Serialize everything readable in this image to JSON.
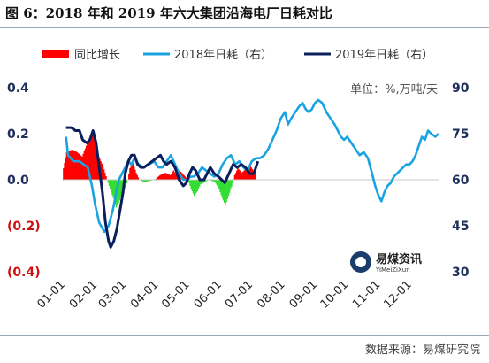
{
  "title": "图 6：2018 年和 2019 年六大集团沿海电厂日耗对比",
  "source": "数据来源：易煤研究院",
  "unit_label": "单位：%,万吨/天",
  "logo": {
    "name": "易煤资讯",
    "sub": "YiMeiZiXun"
  },
  "colors": {
    "growth_pos": "#ff0000",
    "growth_neg": "#33dd33",
    "s2018": "#1aa3e0",
    "s2019": "#0b1f5c",
    "left_axis": "#1f2f5c",
    "left_axis_neg": "#cc1111"
  },
  "chart_data": {
    "type": "line",
    "xlabel": "",
    "ylabel": "",
    "x_ticks": [
      "01-01",
      "02-01",
      "03-01",
      "04-01",
      "05-01",
      "06-01",
      "07-01",
      "08-01",
      "09-01",
      "10-01",
      "11-01",
      "12-01"
    ],
    "x_range": [
      1,
      365
    ],
    "left_axis": {
      "ticks": [
        "0.4",
        "0.2",
        "0.0",
        "(0.2)",
        "(0.4)"
      ],
      "range": [
        -0.4,
        0.4
      ]
    },
    "right_axis": {
      "ticks": [
        "90",
        "75",
        "60",
        "45",
        "30"
      ],
      "range": [
        30,
        90
      ]
    },
    "legend_position": "top",
    "series": [
      {
        "name": "同比增长",
        "type": "bar",
        "axis": "left",
        "points": [
          [
            2,
            0.05
          ],
          [
            5,
            0.12
          ],
          [
            10,
            0.13
          ],
          [
            15,
            0.12
          ],
          [
            20,
            0.1
          ],
          [
            25,
            0.16
          ],
          [
            30,
            0.21
          ],
          [
            33,
            0.17
          ],
          [
            36,
            0.1
          ],
          [
            40,
            0.06
          ],
          [
            44,
            0.0
          ],
          [
            47,
            -0.04
          ],
          [
            50,
            -0.08
          ],
          [
            53,
            -0.12
          ],
          [
            56,
            -0.09
          ],
          [
            59,
            -0.05
          ],
          [
            62,
            -0.03
          ],
          [
            64,
            0.0
          ],
          [
            66,
            0.05
          ],
          [
            69,
            0.07
          ],
          [
            72,
            0.03
          ],
          [
            75,
            0.0
          ],
          [
            80,
            -0.01
          ],
          [
            90,
            0.0
          ],
          [
            95,
            0.02
          ],
          [
            100,
            0.03
          ],
          [
            105,
            0.02
          ],
          [
            108,
            0.04
          ],
          [
            111,
            0.02
          ],
          [
            114,
            0.04
          ],
          [
            118,
            0.02
          ],
          [
            122,
            0.0
          ],
          [
            125,
            -0.04
          ],
          [
            128,
            -0.07
          ],
          [
            131,
            -0.05
          ],
          [
            134,
            -0.02
          ],
          [
            138,
            -0.01
          ],
          [
            142,
            0.0
          ],
          [
            148,
            -0.01
          ],
          [
            152,
            -0.04
          ],
          [
            155,
            -0.08
          ],
          [
            158,
            -0.11
          ],
          [
            161,
            -0.07
          ],
          [
            164,
            -0.03
          ],
          [
            167,
            0.02
          ],
          [
            170,
            0.05
          ],
          [
            174,
            0.03
          ],
          [
            178,
            0.05
          ],
          [
            182,
            0.06
          ],
          [
            185,
            0.04
          ],
          [
            188,
            0.02
          ]
        ]
      },
      {
        "name": "2018年日耗（右）",
        "type": "line",
        "axis": "right",
        "points": [
          [
            5,
            74
          ],
          [
            7,
            68
          ],
          [
            12,
            66
          ],
          [
            18,
            66
          ],
          [
            22,
            65
          ],
          [
            26,
            64
          ],
          [
            30,
            58
          ],
          [
            33,
            52
          ],
          [
            37,
            46
          ],
          [
            42,
            43
          ],
          [
            46,
            45
          ],
          [
            50,
            50
          ],
          [
            53,
            55
          ],
          [
            56,
            60
          ],
          [
            59,
            62
          ],
          [
            62,
            64
          ],
          [
            65,
            66
          ],
          [
            68,
            65
          ],
          [
            71,
            67
          ],
          [
            75,
            65
          ],
          [
            80,
            64
          ],
          [
            85,
            65
          ],
          [
            90,
            66
          ],
          [
            94,
            64
          ],
          [
            98,
            64
          ],
          [
            102,
            66
          ],
          [
            106,
            68
          ],
          [
            110,
            65
          ],
          [
            114,
            62
          ],
          [
            118,
            60
          ],
          [
            122,
            60
          ],
          [
            125,
            61
          ],
          [
            128,
            61
          ],
          [
            132,
            62
          ],
          [
            136,
            64
          ],
          [
            140,
            63
          ],
          [
            144,
            62
          ],
          [
            148,
            61
          ],
          [
            152,
            62
          ],
          [
            156,
            65
          ],
          [
            160,
            67
          ],
          [
            164,
            68
          ],
          [
            168,
            65
          ],
          [
            172,
            66
          ],
          [
            176,
            64
          ],
          [
            180,
            63
          ],
          [
            184,
            66
          ],
          [
            188,
            67
          ],
          [
            192,
            67
          ],
          [
            196,
            68
          ],
          [
            200,
            70
          ],
          [
            204,
            73
          ],
          [
            208,
            76
          ],
          [
            212,
            80
          ],
          [
            216,
            82
          ],
          [
            219,
            78
          ],
          [
            222,
            80
          ],
          [
            226,
            82
          ],
          [
            230,
            84
          ],
          [
            233,
            85
          ],
          [
            236,
            83
          ],
          [
            239,
            82
          ],
          [
            242,
            83
          ],
          [
            245,
            85
          ],
          [
            248,
            86
          ],
          [
            252,
            85
          ],
          [
            256,
            82
          ],
          [
            260,
            80
          ],
          [
            264,
            78
          ],
          [
            267,
            76
          ],
          [
            270,
            74
          ],
          [
            273,
            73
          ],
          [
            276,
            74
          ],
          [
            280,
            72
          ],
          [
            284,
            70
          ],
          [
            288,
            68
          ],
          [
            292,
            69
          ],
          [
            296,
            67
          ],
          [
            300,
            62
          ],
          [
            303,
            58
          ],
          [
            306,
            55
          ],
          [
            309,
            53
          ],
          [
            312,
            56
          ],
          [
            315,
            58
          ],
          [
            318,
            59
          ],
          [
            321,
            61
          ],
          [
            324,
            62
          ],
          [
            327,
            63
          ],
          [
            330,
            64
          ],
          [
            333,
            65
          ],
          [
            336,
            65
          ],
          [
            339,
            66
          ],
          [
            342,
            68
          ],
          [
            345,
            71
          ],
          [
            348,
            74
          ],
          [
            351,
            73
          ],
          [
            354,
            76
          ],
          [
            357,
            75
          ],
          [
            361,
            74
          ],
          [
            364,
            75
          ]
        ]
      },
      {
        "name": "2019年日耗（右）",
        "type": "line",
        "axis": "right",
        "points": [
          [
            5,
            77
          ],
          [
            10,
            77
          ],
          [
            14,
            76
          ],
          [
            18,
            76
          ],
          [
            21,
            73
          ],
          [
            25,
            72
          ],
          [
            28,
            73
          ],
          [
            31,
            76
          ],
          [
            34,
            72
          ],
          [
            37,
            64
          ],
          [
            40,
            56
          ],
          [
            43,
            46
          ],
          [
            46,
            40
          ],
          [
            48,
            38
          ],
          [
            51,
            40
          ],
          [
            54,
            44
          ],
          [
            57,
            50
          ],
          [
            60,
            56
          ],
          [
            62,
            62
          ],
          [
            65,
            66
          ],
          [
            68,
            68
          ],
          [
            71,
            68
          ],
          [
            74,
            65
          ],
          [
            77,
            64
          ],
          [
            80,
            64
          ],
          [
            84,
            65
          ],
          [
            88,
            66
          ],
          [
            92,
            67
          ],
          [
            96,
            68
          ],
          [
            99,
            66
          ],
          [
            102,
            65
          ],
          [
            106,
            66
          ],
          [
            110,
            64
          ],
          [
            114,
            60
          ],
          [
            118,
            58
          ],
          [
            121,
            59
          ],
          [
            124,
            62
          ],
          [
            127,
            64
          ],
          [
            130,
            63
          ],
          [
            134,
            60
          ],
          [
            138,
            60
          ],
          [
            141,
            62
          ],
          [
            144,
            64
          ],
          [
            148,
            62
          ],
          [
            152,
            61
          ],
          [
            155,
            60
          ],
          [
            158,
            59
          ],
          [
            162,
            62
          ],
          [
            166,
            65
          ],
          [
            170,
            64
          ],
          [
            174,
            65
          ],
          [
            178,
            64
          ],
          [
            182,
            62
          ],
          [
            186,
            62
          ],
          [
            190,
            66
          ]
        ]
      }
    ]
  }
}
